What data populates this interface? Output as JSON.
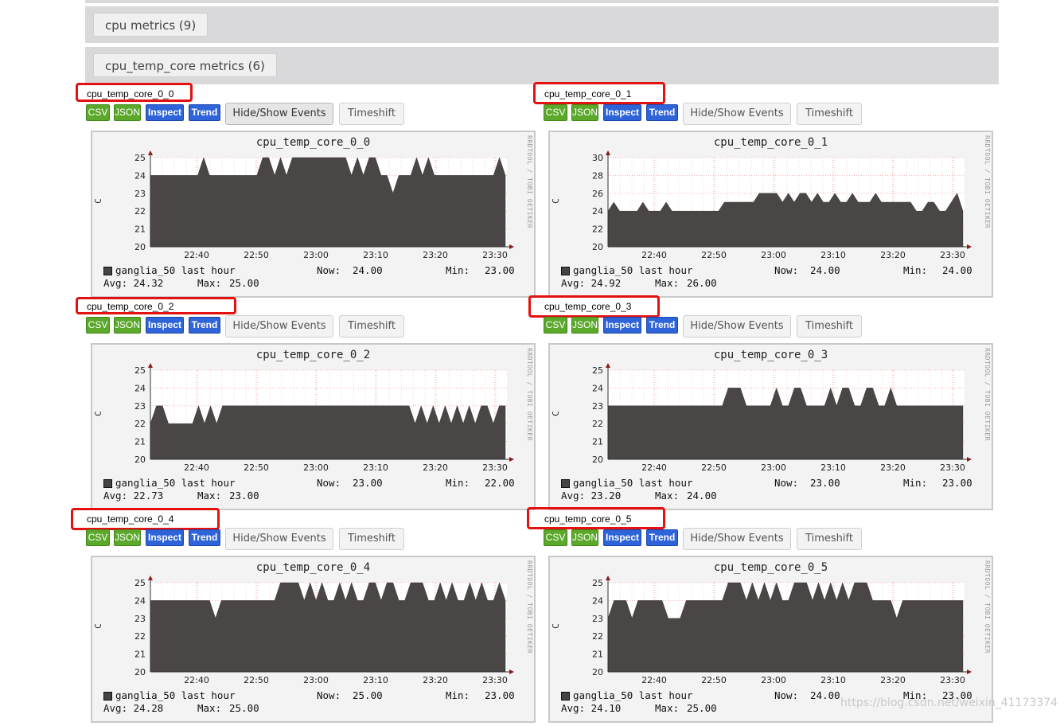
{
  "groups": [
    {
      "label": "cpu metrics (9)"
    },
    {
      "label": "cpu_temp_core metrics (6)"
    }
  ],
  "buttons": {
    "csv": "CSV",
    "json": "JSON",
    "inspect": "Inspect",
    "trend": "Trend",
    "events": "Hide/Show Events",
    "timeshift": "Timeshift"
  },
  "side_text": "RRDTOOL / TOBI OETIKER",
  "unit": "C",
  "watermark": "https://blog.csdn.net/weixin_41173374",
  "legend_label": "ganglia_50 last hour",
  "x_ticks": [
    "22:40",
    "22:50",
    "23:00",
    "23:10",
    "23:20",
    "23:30"
  ],
  "panels": [
    {
      "title": "cpu_temp_core_0_0",
      "graph_title": "cpu_temp_core_0_0",
      "now": "24.00",
      "min": "23.00",
      "avg": "24.32",
      "max": "25.00",
      "ylim": [
        20,
        25
      ],
      "yticks": [
        "20",
        "21",
        "22",
        "23",
        "24",
        "25"
      ],
      "series": [
        24,
        24,
        24,
        24,
        24,
        24,
        24,
        24,
        24,
        25,
        24,
        24,
        24,
        24,
        24,
        24,
        24,
        24,
        24,
        25,
        25,
        24,
        25,
        24,
        25,
        25,
        25,
        25,
        25,
        25,
        25,
        25,
        25,
        25,
        24,
        25,
        24,
        25,
        25,
        24,
        24,
        23,
        24,
        24,
        24,
        25,
        24,
        25,
        24,
        24,
        24,
        24,
        24,
        24,
        24,
        24,
        24,
        24,
        24,
        25,
        24
      ]
    },
    {
      "title": "cpu_temp_core_0_1",
      "graph_title": "cpu_temp_core_0_1",
      "now": "24.00",
      "min": "24.00",
      "avg": "24.92",
      "max": "26.00",
      "ylim": [
        20,
        30
      ],
      "yticks": [
        "20",
        "22",
        "24",
        "26",
        "28",
        "30"
      ],
      "series": [
        24,
        25,
        24,
        24,
        24,
        24,
        25,
        24,
        24,
        24,
        25,
        24,
        24,
        24,
        24,
        24,
        24,
        24,
        24,
        24,
        25,
        25,
        25,
        25,
        25,
        25,
        26,
        26,
        26,
        26,
        25,
        26,
        25,
        26,
        26,
        25,
        26,
        25,
        25,
        26,
        25,
        25,
        26,
        25,
        25,
        25,
        26,
        25,
        25,
        25,
        25,
        25,
        25,
        24,
        24,
        25,
        25,
        24,
        24,
        25,
        26,
        24
      ]
    },
    {
      "title": "cpu_temp_core_0_2",
      "graph_title": "cpu_temp_core_0_2",
      "now": "23.00",
      "min": "22.00",
      "avg": "22.73",
      "max": "23.00",
      "ylim": [
        20,
        25
      ],
      "yticks": [
        "20",
        "21",
        "22",
        "23",
        "24",
        "25"
      ],
      "series": [
        22,
        23,
        23,
        22,
        22,
        22,
        22,
        22,
        23,
        22,
        23,
        22,
        23,
        23,
        23,
        23,
        23,
        23,
        23,
        23,
        23,
        23,
        23,
        23,
        23,
        23,
        23,
        23,
        23,
        23,
        23,
        23,
        23,
        23,
        23,
        23,
        23,
        23,
        23,
        23,
        23,
        23,
        23,
        23,
        22,
        23,
        22,
        23,
        22,
        23,
        22,
        23,
        22,
        23,
        22,
        23,
        23,
        22,
        23,
        23
      ]
    },
    {
      "title": "cpu_temp_core_0_3",
      "graph_title": "cpu_temp_core_0_3",
      "now": "23.00",
      "min": "23.00",
      "avg": "23.20",
      "max": "24.00",
      "ylim": [
        20,
        25
      ],
      "yticks": [
        "20",
        "21",
        "22",
        "23",
        "24",
        "25"
      ],
      "series": [
        23,
        23,
        23,
        23,
        23,
        23,
        23,
        23,
        23,
        23,
        23,
        23,
        23,
        23,
        23,
        23,
        23,
        23,
        23,
        23,
        24,
        24,
        24,
        23,
        23,
        23,
        23,
        23,
        24,
        23,
        23,
        24,
        24,
        23,
        23,
        23,
        23,
        24,
        23,
        24,
        24,
        23,
        23,
        24,
        24,
        23,
        23,
        24,
        23,
        23,
        23,
        23,
        23,
        23,
        23,
        23,
        23,
        23,
        23,
        23
      ]
    },
    {
      "title": "cpu_temp_core_0_4",
      "graph_title": "cpu_temp_core_0_4",
      "now": "25.00",
      "min": "23.00",
      "avg": "24.28",
      "max": "25.00",
      "ylim": [
        20,
        25
      ],
      "yticks": [
        "20",
        "21",
        "22",
        "23",
        "24",
        "25"
      ],
      "series": [
        24,
        24,
        24,
        24,
        24,
        24,
        24,
        24,
        24,
        24,
        24,
        23,
        24,
        24,
        24,
        24,
        24,
        24,
        24,
        24,
        24,
        24,
        25,
        25,
        25,
        25,
        24,
        25,
        24,
        25,
        24,
        24,
        25,
        24,
        25,
        24,
        24,
        25,
        25,
        24,
        25,
        25,
        24,
        24,
        25,
        25,
        25,
        24,
        24,
        25,
        24,
        25,
        24,
        24,
        25,
        24,
        25,
        24,
        24,
        25,
        24
      ]
    },
    {
      "title": "cpu_temp_core_0_5",
      "graph_title": "cpu_temp_core_0_5",
      "now": "24.00",
      "min": "23.00",
      "avg": "24.10",
      "max": "25.00",
      "ylim": [
        20,
        25
      ],
      "yticks": [
        "20",
        "21",
        "22",
        "23",
        "24",
        "25"
      ],
      "series": [
        23,
        24,
        24,
        24,
        23,
        24,
        24,
        24,
        24,
        24,
        23,
        23,
        23,
        24,
        24,
        24,
        24,
        24,
        24,
        24,
        25,
        25,
        25,
        24,
        25,
        24,
        25,
        24,
        25,
        24,
        24,
        25,
        25,
        25,
        24,
        25,
        24,
        25,
        24,
        25,
        24,
        25,
        25,
        25,
        24,
        24,
        24,
        24,
        23,
        24,
        24,
        24,
        24,
        24,
        24,
        24,
        24,
        24,
        24,
        24
      ]
    }
  ]
}
